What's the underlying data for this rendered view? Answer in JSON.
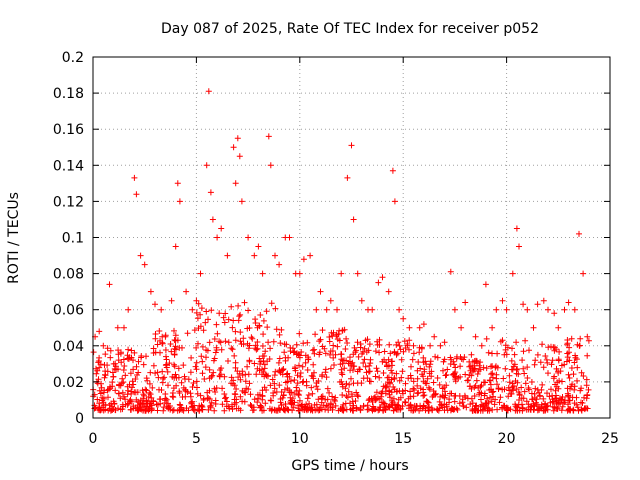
{
  "chart_data": {
    "type": "scatter",
    "title": "Day 087 of 2025, Rate Of TEC Index for receiver p052",
    "xlabel": "GPS time / hours",
    "ylabel": "ROTI / TECUs",
    "xlim": [
      0,
      25
    ],
    "ylim": [
      0,
      0.2
    ],
    "xticks": [
      0,
      5,
      10,
      15,
      20,
      25
    ],
    "yticks": [
      0,
      0.02,
      0.04,
      0.06,
      0.08,
      0.1,
      0.12,
      0.14,
      0.16,
      0.18,
      0.2
    ],
    "xtick_labels": [
      "0",
      "5",
      "10",
      "15",
      "20",
      "25"
    ],
    "ytick_labels": [
      "0",
      "0.02",
      "0.04",
      "0.06",
      "0.08",
      "0.1",
      "0.12",
      "0.14",
      "0.16",
      "0.18",
      "0.2"
    ],
    "grid": true,
    "marker": "+",
    "color": "#ff0000",
    "series": [
      {
        "name": "ROTI",
        "x": [
          0.1,
          0.3,
          0.5,
          0.8,
          1.0,
          1.2,
          1.5,
          1.7,
          2.0,
          2.1,
          2.3,
          2.5,
          2.8,
          3.0,
          3.3,
          3.5,
          3.8,
          4.0,
          4.1,
          4.2,
          4.5,
          4.8,
          5.0,
          5.2,
          5.5,
          5.6,
          5.7,
          5.8,
          6.0,
          6.2,
          6.5,
          6.8,
          6.9,
          7.0,
          7.1,
          7.2,
          7.5,
          7.8,
          8.0,
          8.2,
          8.5,
          8.6,
          8.8,
          9.0,
          9.3,
          9.5,
          9.8,
          10.0,
          10.2,
          10.5,
          10.8,
          11.0,
          11.3,
          11.5,
          11.8,
          12.0,
          12.3,
          12.5,
          12.6,
          12.8,
          13.0,
          13.3,
          13.5,
          13.8,
          14.0,
          14.3,
          14.5,
          14.6,
          14.8,
          15.0,
          15.3,
          15.5,
          15.8,
          16.0,
          16.3,
          16.5,
          16.8,
          17.0,
          17.3,
          17.5,
          17.8,
          18.0,
          18.3,
          18.5,
          18.8,
          19.0,
          19.3,
          19.5,
          19.8,
          20.0,
          20.3,
          20.5,
          20.6,
          20.8,
          21.0,
          21.3,
          21.5,
          21.8,
          22.0,
          22.3,
          22.5,
          22.8,
          23.0,
          23.3,
          23.5,
          23.7,
          23.9
        ],
        "y": [
          0.045,
          0.048,
          0.04,
          0.074,
          0.03,
          0.05,
          0.05,
          0.06,
          0.133,
          0.124,
          0.09,
          0.085,
          0.07,
          0.063,
          0.06,
          0.045,
          0.065,
          0.095,
          0.13,
          0.12,
          0.07,
          0.06,
          0.065,
          0.08,
          0.14,
          0.181,
          0.125,
          0.11,
          0.1,
          0.105,
          0.09,
          0.15,
          0.13,
          0.155,
          0.145,
          0.12,
          0.1,
          0.09,
          0.095,
          0.08,
          0.156,
          0.14,
          0.09,
          0.085,
          0.1,
          0.1,
          0.08,
          0.08,
          0.088,
          0.09,
          0.06,
          0.07,
          0.06,
          0.065,
          0.06,
          0.08,
          0.133,
          0.151,
          0.11,
          0.08,
          0.065,
          0.06,
          0.06,
          0.075,
          0.078,
          0.07,
          0.137,
          0.12,
          0.06,
          0.055,
          0.05,
          0.04,
          0.05,
          0.052,
          0.04,
          0.045,
          0.04,
          0.042,
          0.081,
          0.06,
          0.05,
          0.064,
          0.035,
          0.045,
          0.04,
          0.074,
          0.05,
          0.06,
          0.065,
          0.06,
          0.08,
          0.105,
          0.095,
          0.063,
          0.06,
          0.05,
          0.063,
          0.065,
          0.06,
          0.058,
          0.05,
          0.06,
          0.064,
          0.06,
          0.102,
          0.08,
          0.045
        ]
      }
    ]
  }
}
